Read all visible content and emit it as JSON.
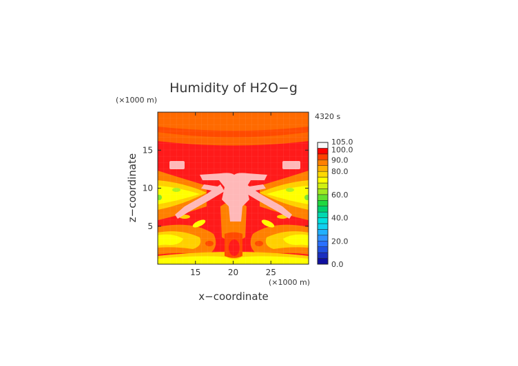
{
  "chart_data": {
    "type": "heatmap",
    "title": "Humidity of H2O−g",
    "time_label": "4320 s",
    "xlabel": "x−coordinate",
    "ylabel": "z−coordinate",
    "x_unit": "(×1000 m)",
    "y_unit": "(×1000 m)",
    "xlim": [
      10,
      30
    ],
    "ylim": [
      0,
      20
    ],
    "x_ticks": [
      15,
      20,
      25
    ],
    "x_tick_labels": [
      "15",
      "20",
      "25"
    ],
    "y_ticks": [
      5,
      10,
      15
    ],
    "y_tick_labels": [
      "5",
      "10",
      "15"
    ],
    "colorbar": {
      "levels": [
        0,
        5,
        10,
        15,
        20,
        25,
        30,
        35,
        40,
        45,
        50,
        55,
        60,
        65,
        70,
        75,
        80,
        85,
        90,
        95,
        100,
        105
      ],
      "colors": [
        "#1010a0",
        "#1a2fc0",
        "#2050e0",
        "#2a70ff",
        "#2f90ff",
        "#20b0ff",
        "#10d0f0",
        "#00e0e0",
        "#00d8b0",
        "#00d070",
        "#20d840",
        "#60e030",
        "#a0e820",
        "#d0f010",
        "#ffff00",
        "#ffd800",
        "#ffb000",
        "#ff8000",
        "#ff4000",
        "#ff0000",
        "#f8f8f8"
      ],
      "labels": [
        {
          "value": 0,
          "text": "0.0"
        },
        {
          "value": 20,
          "text": "20.0"
        },
        {
          "value": 40,
          "text": "40.0"
        },
        {
          "value": 60,
          "text": "60.0"
        },
        {
          "value": 80,
          "text": "80.0"
        },
        {
          "value": 90,
          "text": "90.0"
        },
        {
          "value": 100,
          "text": "100.0"
        },
        {
          "value": 105,
          "text": "105.0"
        }
      ]
    },
    "grid": false,
    "legend": "colorbar-right"
  }
}
